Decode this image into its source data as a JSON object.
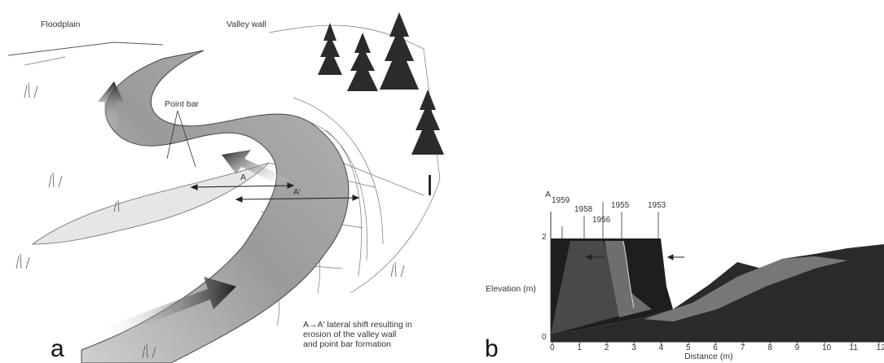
{
  "panel_a": {
    "letter": "a",
    "labels": {
      "floodplain": "Floodplain",
      "valley_wall": "Valley wall",
      "point_bar": "Point bar",
      "a_inner": "A",
      "a_outer": "A′"
    },
    "caption_lines": [
      "A→A′ lateral shift resulting in",
      "erosion of the valley wall",
      "and point bar formation"
    ]
  },
  "panel_b": {
    "letter": "b",
    "axis_point": "A",
    "ylabel": "Elevation (m)",
    "xlabel": "Distance (m)",
    "y_ticks": [
      "2",
      "0"
    ],
    "x_ticks": [
      "0",
      "1",
      "2",
      "3",
      "4",
      "5",
      "6",
      "7",
      "8",
      "9",
      "10",
      "11",
      "12"
    ],
    "years": [
      "1959",
      "1958",
      "1956",
      "1955",
      "1953"
    ]
  },
  "colors": {
    "river": "#8f8f8f",
    "arrow_dark": "#2a2a2a",
    "profile_dark": "#1e1e1e",
    "profile_mid": "#5a5a5a",
    "profile_light": "#8a8a8a"
  }
}
